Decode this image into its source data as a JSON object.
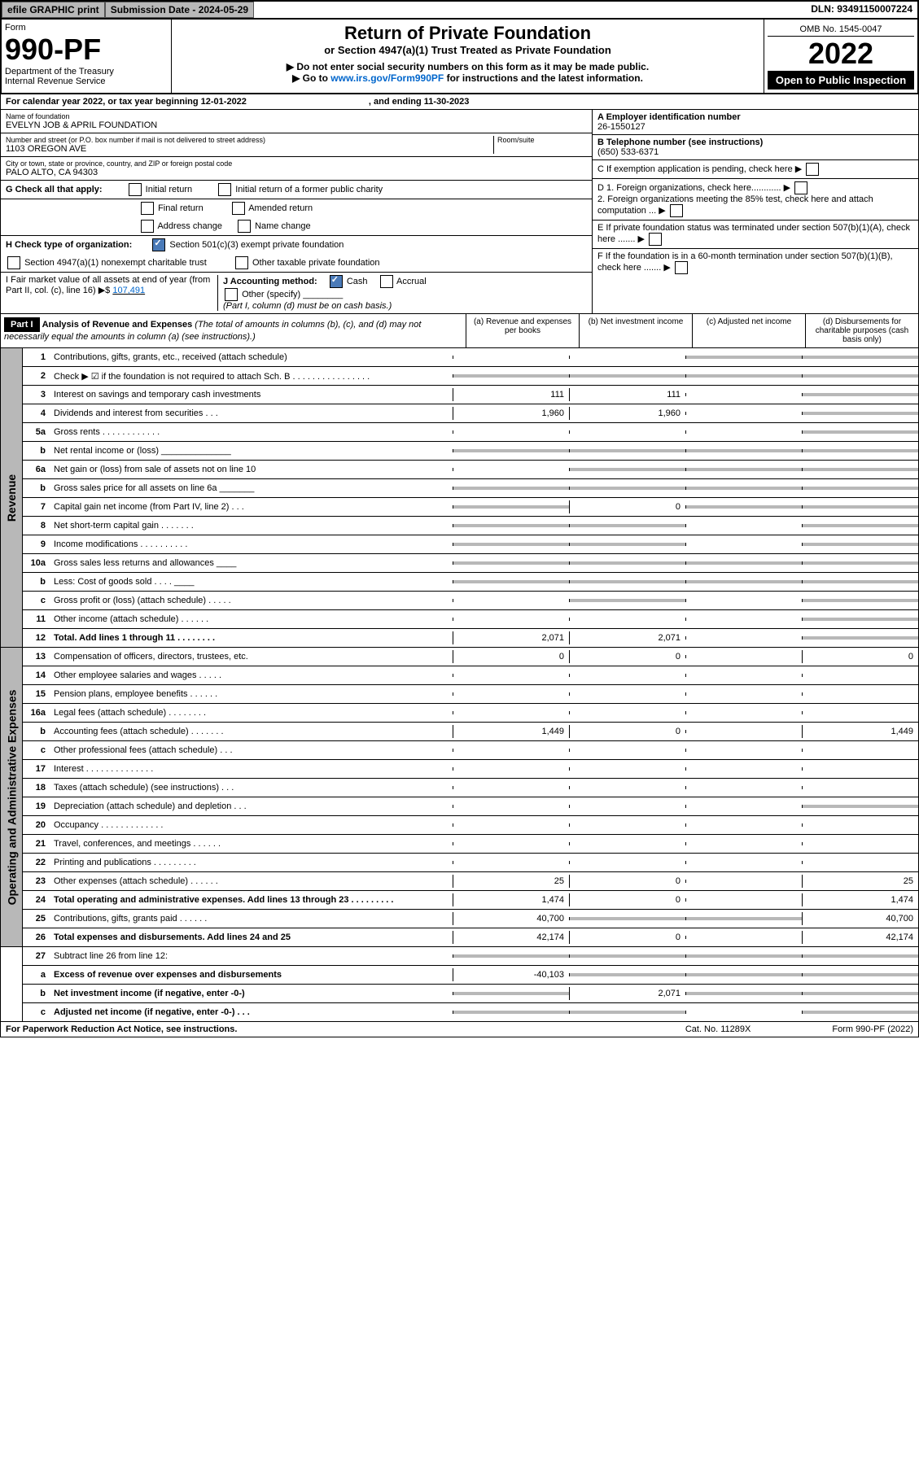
{
  "header": {
    "efile": "efile GRAPHIC print",
    "subdate_lbl": "Submission Date - 2024-05-29",
    "dln": "DLN: 93491150007224"
  },
  "top": {
    "form": "Form",
    "num": "990-PF",
    "dept": "Department of the Treasury",
    "irs": "Internal Revenue Service",
    "title": "Return of Private Foundation",
    "sub1": "or Section 4947(a)(1) Trust Treated as Private Foundation",
    "sub2": "▶ Do not enter social security numbers on this form as it may be made public.",
    "sub3": "▶ Go to ",
    "link": "www.irs.gov/Form990PF",
    "sub3b": " for instructions and the latest information.",
    "omb": "OMB No. 1545-0047",
    "year": "2022",
    "open": "Open to Public Inspection"
  },
  "cal": {
    "a": "For calendar year 2022, or tax year beginning 12-01-2022",
    "b": ", and ending 11-30-2023"
  },
  "info": {
    "name_lbl": "Name of foundation",
    "name": "EVELYN JOB & APRIL FOUNDATION",
    "addr_lbl": "Number and street (or P.O. box number if mail is not delivered to street address)",
    "addr": "1103 OREGON AVE",
    "room": "Room/suite",
    "city_lbl": "City or town, state or province, country, and ZIP or foreign postal code",
    "city": "PALO ALTO, CA  94303",
    "A": "A Employer identification number",
    "ein": "26-1550127",
    "B": "B Telephone number (see instructions)",
    "tel": "(650) 533-6371",
    "C": "C If exemption application is pending, check here",
    "D1": "D 1. Foreign organizations, check here............",
    "D2": "2. Foreign organizations meeting the 85% test, check here and attach computation ...",
    "E": "E  If private foundation status was terminated under section 507(b)(1)(A), check here .......",
    "F": "F  If the foundation is in a 60-month termination under section 507(b)(1)(B), check here .......",
    "G": "G Check all that apply:",
    "g_init": "Initial return",
    "g_initf": "Initial return of a former public charity",
    "g_final": "Final return",
    "g_amend": "Amended return",
    "g_addr": "Address change",
    "g_name": "Name change",
    "H": "H Check type of organization:",
    "h1": "Section 501(c)(3) exempt private foundation",
    "h2": "Section 4947(a)(1) nonexempt charitable trust",
    "h3": "Other taxable private foundation",
    "I": "I Fair market value of all assets at end of year (from Part II, col. (c), line 16) ▶$",
    "Ival": "107,491",
    "J": "J Accounting method:",
    "j1": "Cash",
    "j2": "Accrual",
    "j3": "Other (specify)",
    "Jnote": "(Part I, column (d) must be on cash basis.)"
  },
  "part1": {
    "lbl": "Part I",
    "title": "Analysis of Revenue and Expenses",
    "note": "(The total of amounts in columns (b), (c), and (d) may not necessarily equal the amounts in column (a) (see instructions).)",
    "ca": "(a)   Revenue and expenses per books",
    "cb": "(b)   Net investment income",
    "cc": "(c)   Adjusted net income",
    "cd": "(d)   Disbursements for charitable purposes (cash basis only)",
    "side1": "Revenue",
    "side2": "Operating and Administrative Expenses"
  },
  "lines": [
    {
      "n": "1",
      "t": "Contributions, gifts, grants, etc., received (attach schedule)",
      "a": "",
      "b": "",
      "c": "s",
      "d": "s"
    },
    {
      "n": "2",
      "t": "Check ▶ ☑ if the foundation is not required to attach Sch. B     .  .  .  .  .  .  .  .  .  .  .  .  .  .  .  .",
      "a": "s",
      "b": "s",
      "c": "s",
      "d": "s"
    },
    {
      "n": "3",
      "t": "Interest on savings and temporary cash investments",
      "a": "111",
      "b": "111",
      "c": "",
      "d": "s"
    },
    {
      "n": "4",
      "t": "Dividends and interest from securities   .   .   .",
      "a": "1,960",
      "b": "1,960",
      "c": "",
      "d": "s"
    },
    {
      "n": "5a",
      "t": "Gross rents   .   .   .   .   .   .   .   .   .   .   .   .",
      "a": "",
      "b": "",
      "c": "",
      "d": "s"
    },
    {
      "n": "b",
      "t": "Net rental income or (loss)  ______________",
      "a": "s",
      "b": "s",
      "c": "s",
      "d": "s"
    },
    {
      "n": "6a",
      "t": "Net gain or (loss) from sale of assets not on line 10",
      "a": "",
      "b": "s",
      "c": "s",
      "d": "s"
    },
    {
      "n": "b",
      "t": "Gross sales price for all assets on line 6a _______",
      "a": "s",
      "b": "s",
      "c": "s",
      "d": "s"
    },
    {
      "n": "7",
      "t": "Capital gain net income (from Part IV, line 2)   .   .   .",
      "a": "s",
      "b": "0",
      "c": "s",
      "d": "s"
    },
    {
      "n": "8",
      "t": "Net short-term capital gain   .   .   .   .   .   .   .",
      "a": "s",
      "b": "s",
      "c": "",
      "d": "s"
    },
    {
      "n": "9",
      "t": "Income modifications  .   .   .   .   .   .   .   .   .   .",
      "a": "s",
      "b": "s",
      "c": "",
      "d": "s"
    },
    {
      "n": "10a",
      "t": "Gross sales less returns and allowances  ____",
      "a": "s",
      "b": "s",
      "c": "s",
      "d": "s"
    },
    {
      "n": "b",
      "t": "Less: Cost of goods sold   .   .   .   .  ____",
      "a": "s",
      "b": "s",
      "c": "s",
      "d": "s"
    },
    {
      "n": "c",
      "t": "Gross profit or (loss) (attach schedule)   .   .   .   .   .",
      "a": "",
      "b": "s",
      "c": "",
      "d": "s"
    },
    {
      "n": "11",
      "t": "Other income (attach schedule)   .   .   .   .   .   .",
      "a": "",
      "b": "",
      "c": "",
      "d": "s"
    },
    {
      "n": "12",
      "t": "Total. Add lines 1 through 11   .   .   .   .   .   .   .   .",
      "a": "2,071",
      "b": "2,071",
      "c": "",
      "d": "s",
      "bold": true
    }
  ],
  "exp": [
    {
      "n": "13",
      "t": "Compensation of officers, directors, trustees, etc.",
      "a": "0",
      "b": "0",
      "c": "",
      "d": "0"
    },
    {
      "n": "14",
      "t": "Other employee salaries and wages   .   .   .   .   .",
      "a": "",
      "b": "",
      "c": "",
      "d": ""
    },
    {
      "n": "15",
      "t": "Pension plans, employee benefits   .   .   .   .   .   .",
      "a": "",
      "b": "",
      "c": "",
      "d": ""
    },
    {
      "n": "16a",
      "t": "Legal fees (attach schedule)  .   .   .   .   .   .   .   .",
      "a": "",
      "b": "",
      "c": "",
      "d": ""
    },
    {
      "n": "b",
      "t": "Accounting fees (attach schedule)  .   .   .   .   .   .   .",
      "a": "1,449",
      "b": "0",
      "c": "",
      "d": "1,449"
    },
    {
      "n": "c",
      "t": "Other professional fees (attach schedule)   .   .   .",
      "a": "",
      "b": "",
      "c": "",
      "d": ""
    },
    {
      "n": "17",
      "t": "Interest  .   .   .   .   .   .   .   .   .   .   .   .   .   .",
      "a": "",
      "b": "",
      "c": "",
      "d": ""
    },
    {
      "n": "18",
      "t": "Taxes (attach schedule) (see instructions)   .   .   .",
      "a": "",
      "b": "",
      "c": "",
      "d": ""
    },
    {
      "n": "19",
      "t": "Depreciation (attach schedule) and depletion   .   .   .",
      "a": "",
      "b": "",
      "c": "",
      "d": "s"
    },
    {
      "n": "20",
      "t": "Occupancy  .   .   .   .   .   .   .   .   .   .   .   .   .",
      "a": "",
      "b": "",
      "c": "",
      "d": ""
    },
    {
      "n": "21",
      "t": "Travel, conferences, and meetings  .   .   .   .   .   .",
      "a": "",
      "b": "",
      "c": "",
      "d": ""
    },
    {
      "n": "22",
      "t": "Printing and publications  .   .   .   .   .   .   .   .   .",
      "a": "",
      "b": "",
      "c": "",
      "d": ""
    },
    {
      "n": "23",
      "t": "Other expenses (attach schedule)  .   .   .   .   .   .",
      "a": "25",
      "b": "0",
      "c": "",
      "d": "25"
    },
    {
      "n": "24",
      "t": "Total operating and administrative expenses. Add lines 13 through 23   .   .   .   .   .   .   .   .   .",
      "a": "1,474",
      "b": "0",
      "c": "",
      "d": "1,474",
      "bold": true
    },
    {
      "n": "25",
      "t": "Contributions, gifts, grants paid   .   .   .   .   .   .",
      "a": "40,700",
      "b": "s",
      "c": "s",
      "d": "40,700"
    },
    {
      "n": "26",
      "t": "Total expenses and disbursements. Add lines 24 and 25",
      "a": "42,174",
      "b": "0",
      "c": "",
      "d": "42,174",
      "bold": true
    }
  ],
  "tail": [
    {
      "n": "27",
      "t": "Subtract line 26 from line 12:",
      "a": "s",
      "b": "s",
      "c": "s",
      "d": "s"
    },
    {
      "n": "a",
      "t": "Excess of revenue over expenses and disbursements",
      "a": "-40,103",
      "b": "s",
      "c": "s",
      "d": "s",
      "bold": true
    },
    {
      "n": "b",
      "t": "Net investment income (if negative, enter -0-)",
      "a": "s",
      "b": "2,071",
      "c": "s",
      "d": "s",
      "bold": true
    },
    {
      "n": "c",
      "t": "Adjusted net income (if negative, enter -0-)   .   .   .",
      "a": "s",
      "b": "s",
      "c": "",
      "d": "s",
      "bold": true
    }
  ],
  "ftr": {
    "a": "For Paperwork Reduction Act Notice, see instructions.",
    "b": "Cat. No. 11289X",
    "c": "Form 990-PF (2022)"
  }
}
